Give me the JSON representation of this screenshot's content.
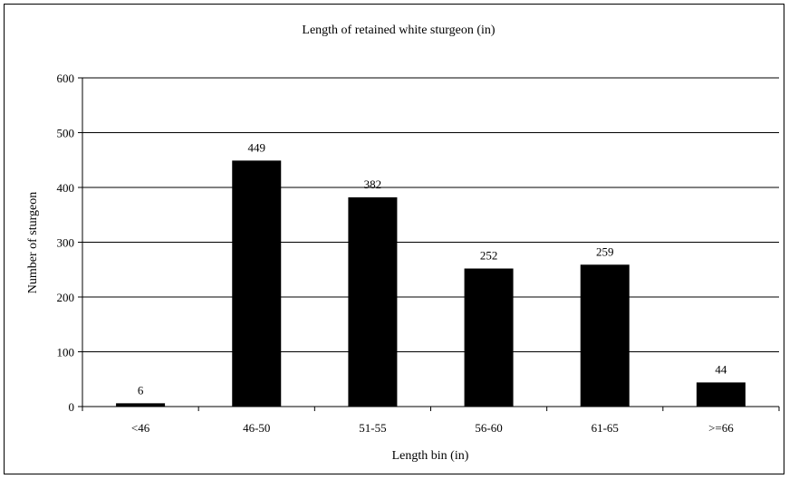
{
  "chart_data": {
    "type": "bar",
    "title": "Length of retained white sturgeon (in)",
    "xlabel": "Length bin (in)",
    "ylabel": "Number of sturgeon",
    "categories": [
      "<46",
      "46-50",
      "51-55",
      "56-60",
      "61-65",
      ">=66"
    ],
    "values": [
      6,
      449,
      382,
      252,
      259,
      44
    ],
    "data_labels": [
      "6",
      "449",
      "382",
      "252",
      "259",
      "44"
    ],
    "ylim": [
      0,
      600
    ],
    "yticks": [
      0,
      100,
      200,
      300,
      400,
      500,
      600
    ],
    "grid": true,
    "legend": "none",
    "bar_color": "#000000"
  }
}
